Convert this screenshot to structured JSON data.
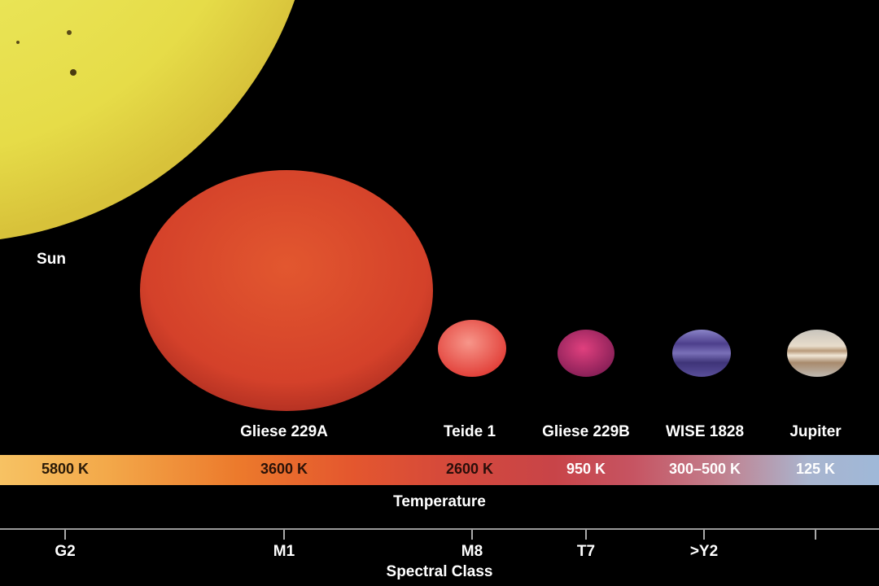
{
  "objects": [
    {
      "name": "Sun",
      "temperature": "5800 K",
      "spectral_class": "G2"
    },
    {
      "name": "Gliese 229A",
      "temperature": "3600 K",
      "spectral_class": "M1"
    },
    {
      "name": "Teide 1",
      "temperature": "2600 K",
      "spectral_class": "M8"
    },
    {
      "name": "Gliese 229B",
      "temperature": "950 K",
      "spectral_class": "T7"
    },
    {
      "name": "WISE 1828",
      "temperature": "300–500 K",
      "spectral_class": ">Y2"
    },
    {
      "name": "Jupiter",
      "temperature": "125 K",
      "spectral_class": ""
    }
  ],
  "temperature_label": "Temperature",
  "spectral_label": "Spectral Class",
  "colors": {
    "sun": "#e8e04a",
    "gliese229a": "#d9472e",
    "teide1": "#ee5a4c",
    "gliese229b": "#c2346a",
    "wise1828": "#5a4c9a",
    "jupiter": "#d8cfc0"
  }
}
